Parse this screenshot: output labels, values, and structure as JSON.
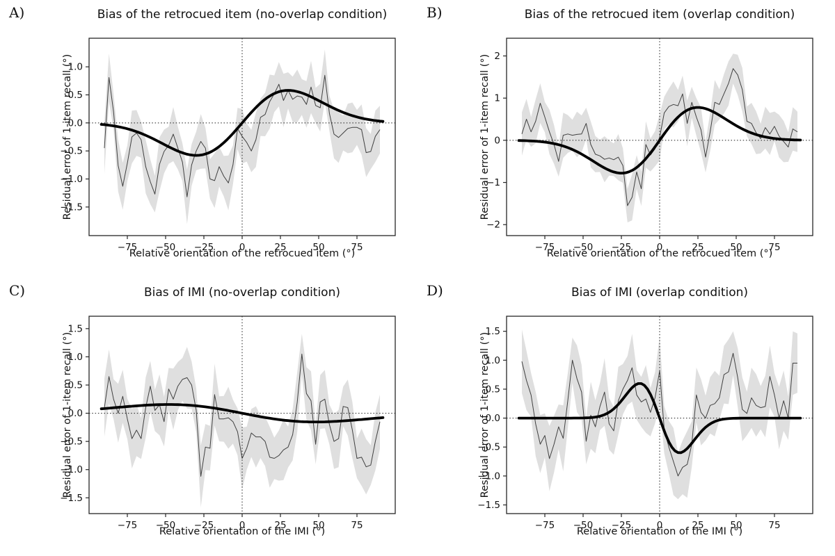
{
  "figure": {
    "kind": "2x2 matplotlib-style bias figure",
    "background_color": "#ffffff",
    "styles": {
      "band_color": "#d7d7d7",
      "noisy_line_color": "#404040",
      "model_curve_color": "#000000",
      "spine_color": "#262626",
      "zero_line_color": "#1a1a1a"
    }
  },
  "chart_data": [
    {
      "id": "A",
      "type": "line",
      "label": "A)",
      "title": "Bias of the retrocued item (no-overlap condition)",
      "xlabel": "Relative orientation of the retrocued item (°)",
      "ylabel": "Residual error of 1-item recall (°)",
      "xlim": [
        -100,
        100
      ],
      "ylim": [
        -2.01,
        1.51
      ],
      "xticks": [
        -75,
        -50,
        -25,
        0,
        25,
        50,
        75
      ],
      "yticks": [
        1.0,
        0.5,
        0.0,
        -0.5,
        -1.0,
        -1.5
      ],
      "ytick_decimals": 1,
      "zero_lines": {
        "horizontal": 0,
        "vertical": 0,
        "style": "dotted"
      },
      "legend": "none",
      "series": [
        {
          "name": "group mean with SEM band",
          "style": "thin-noisy-with-band",
          "x_start": -90,
          "x_step": 3,
          "band_halfwidth": 0.4,
          "values": [
            -0.45,
            0.81,
            0.2,
            -0.76,
            -1.13,
            -0.72,
            -0.25,
            -0.18,
            -0.3,
            -0.78,
            -1.05,
            -1.27,
            -0.74,
            -0.51,
            -0.4,
            -0.2,
            -0.45,
            -0.7,
            -1.32,
            -0.75,
            -0.5,
            -0.33,
            -0.45,
            -1.0,
            -1.03,
            -0.78,
            -0.95,
            -1.07,
            -0.75,
            -0.1,
            -0.24,
            -0.35,
            -0.5,
            -0.3,
            0.1,
            0.15,
            0.38,
            0.52,
            0.69,
            0.4,
            0.58,
            0.42,
            0.48,
            0.46,
            0.33,
            0.64,
            0.31,
            0.27,
            0.85,
            0.17,
            -0.2,
            -0.26,
            -0.18,
            -0.1,
            -0.08,
            -0.08,
            -0.12,
            -0.53,
            -0.51,
            -0.24,
            -0.12
          ]
        },
        {
          "name": "model fit",
          "style": "thick-smooth",
          "shape": "derivative_of_gaussian",
          "amplitude": 0.58,
          "sigma_deg": 30,
          "x_range": [
            -92,
            92
          ]
        }
      ]
    },
    {
      "id": "B",
      "type": "line",
      "label": "B)",
      "title": "Bias of the retrocued item (overlap condition)",
      "xlabel": "Relative orientation of the retrocued item (°)",
      "ylabel": "Residual error of 1-item recall (°)",
      "xlim": [
        -100,
        100
      ],
      "ylim": [
        -2.26,
        2.42
      ],
      "xticks": [
        -75,
        -50,
        -25,
        0,
        25,
        50,
        75
      ],
      "yticks": [
        2,
        1,
        0,
        -1,
        -2
      ],
      "ytick_decimals": 0,
      "zero_lines": {
        "horizontal": 0,
        "vertical": 0,
        "style": "dotted"
      },
      "legend": "none",
      "series": [
        {
          "name": "group mean with SEM band",
          "style": "thin-noisy-with-band",
          "x_start": -90,
          "x_step": 3,
          "band_halfwidth": 0.45,
          "values": [
            0.15,
            0.5,
            0.2,
            0.45,
            0.88,
            0.55,
            0.2,
            -0.1,
            -0.5,
            0.12,
            0.15,
            0.12,
            0.14,
            0.15,
            0.4,
            -0.1,
            -0.33,
            -0.37,
            -0.45,
            -0.42,
            -0.46,
            -0.4,
            -0.6,
            -1.55,
            -1.35,
            -0.75,
            -1.15,
            -0.1,
            -0.35,
            -0.2,
            0.07,
            0.65,
            0.8,
            0.85,
            0.82,
            1.1,
            0.4,
            0.9,
            0.55,
            0.25,
            -0.4,
            0.2,
            0.9,
            0.85,
            1.1,
            1.35,
            1.7,
            1.55,
            1.2,
            0.45,
            0.4,
            0.18,
            0.04,
            0.3,
            0.15,
            0.33,
            0.1,
            -0.03,
            -0.16,
            0.27,
            0.2
          ]
        },
        {
          "name": "model fit",
          "style": "thick-smooth",
          "shape": "derivative_of_gaussian",
          "amplitude": 0.78,
          "sigma_deg": 25,
          "x_range": [
            -92,
            92
          ]
        }
      ]
    },
    {
      "id": "C",
      "type": "line",
      "label": "C)",
      "title": "Bias of IMI (no-overlap condition)",
      "xlabel": "Relative orientation of the IMI (°)",
      "ylabel": "Residual error of 1-item recall (°)",
      "xlim": [
        -100,
        100
      ],
      "ylim": [
        -1.78,
        1.72
      ],
      "xticks": [
        -75,
        -50,
        -25,
        0,
        25,
        50,
        75
      ],
      "yticks": [
        1.5,
        1.0,
        0.5,
        0.0,
        -0.5,
        -1.0,
        -1.5
      ],
      "ytick_decimals": 1,
      "zero_lines": {
        "horizontal": 0,
        "vertical": 0,
        "style": "dotted"
      },
      "legend": "none",
      "series": [
        {
          "name": "group mean with SEM band",
          "style": "thin-noisy-with-band",
          "x_start": -90,
          "x_step": 3,
          "band_halfwidth": 0.45,
          "values": [
            0.1,
            0.65,
            0.25,
            0.0,
            0.3,
            -0.1,
            -0.45,
            -0.3,
            -0.45,
            0.1,
            0.48,
            0.05,
            0.15,
            -0.15,
            0.43,
            0.25,
            0.48,
            0.6,
            0.63,
            0.5,
            0.05,
            -1.12,
            -0.6,
            -0.62,
            0.33,
            -0.1,
            -0.1,
            -0.08,
            -0.15,
            -0.33,
            -0.8,
            -0.62,
            -0.35,
            -0.42,
            -0.42,
            -0.5,
            -0.78,
            -0.8,
            -0.75,
            -0.65,
            -0.6,
            -0.38,
            0.2,
            1.05,
            0.35,
            0.22,
            -0.55,
            0.2,
            0.25,
            -0.2,
            -0.5,
            -0.45,
            0.12,
            0.1,
            -0.3,
            -0.8,
            -0.78,
            -0.95,
            -0.92,
            -0.5,
            -0.15
          ]
        },
        {
          "name": "model fit",
          "style": "thick-smooth",
          "shape": "derivative_of_gaussian",
          "amplitude": -0.155,
          "sigma_deg": 48,
          "x_range": [
            -92,
            92
          ]
        }
      ]
    },
    {
      "id": "D",
      "type": "line",
      "label": "D)",
      "title": "Bias of IMI (overlap condition)",
      "xlabel": "Relative orientation of the IMI (°)",
      "ylabel": "Residual error of 1-item recall (°)",
      "xlim": [
        -100,
        100
      ],
      "ylim": [
        -1.65,
        1.76
      ],
      "xticks": [
        -75,
        -50,
        -25,
        0,
        25,
        50,
        75
      ],
      "yticks": [
        1.5,
        1.0,
        0.5,
        0.0,
        -0.5,
        -1.0,
        -1.5
      ],
      "ytick_decimals": 1,
      "zero_lines": {
        "horizontal": 0,
        "vertical": 0,
        "style": "dotted"
      },
      "legend": "none",
      "series": [
        {
          "name": "group mean with SEM band",
          "style": "thin-noisy-with-band",
          "x_start": -90,
          "x_step": 3,
          "band_halfwidth": 0.48,
          "values": [
            0.98,
            0.65,
            0.4,
            -0.1,
            -0.45,
            -0.3,
            -0.7,
            -0.45,
            -0.15,
            -0.35,
            0.3,
            1.0,
            0.68,
            0.45,
            -0.4,
            0.05,
            -0.15,
            0.2,
            0.45,
            -0.1,
            -0.22,
            0.3,
            0.5,
            0.65,
            0.87,
            0.4,
            0.28,
            0.33,
            0.1,
            0.35,
            0.82,
            -0.2,
            -0.5,
            -0.75,
            -1.0,
            -0.85,
            -0.8,
            -0.45,
            0.4,
            0.1,
            0.0,
            0.22,
            0.25,
            0.35,
            0.75,
            0.8,
            1.12,
            0.7,
            0.15,
            0.08,
            0.35,
            0.22,
            0.18,
            0.2,
            0.72,
            0.4,
            0.0,
            0.3,
            0.0,
            0.95,
            0.95
          ]
        },
        {
          "name": "model fit",
          "style": "thick-smooth",
          "shape": "derivative_of_gaussian",
          "amplitude": -0.6,
          "sigma_deg": 13,
          "x_range": [
            -92,
            92
          ]
        }
      ]
    }
  ]
}
